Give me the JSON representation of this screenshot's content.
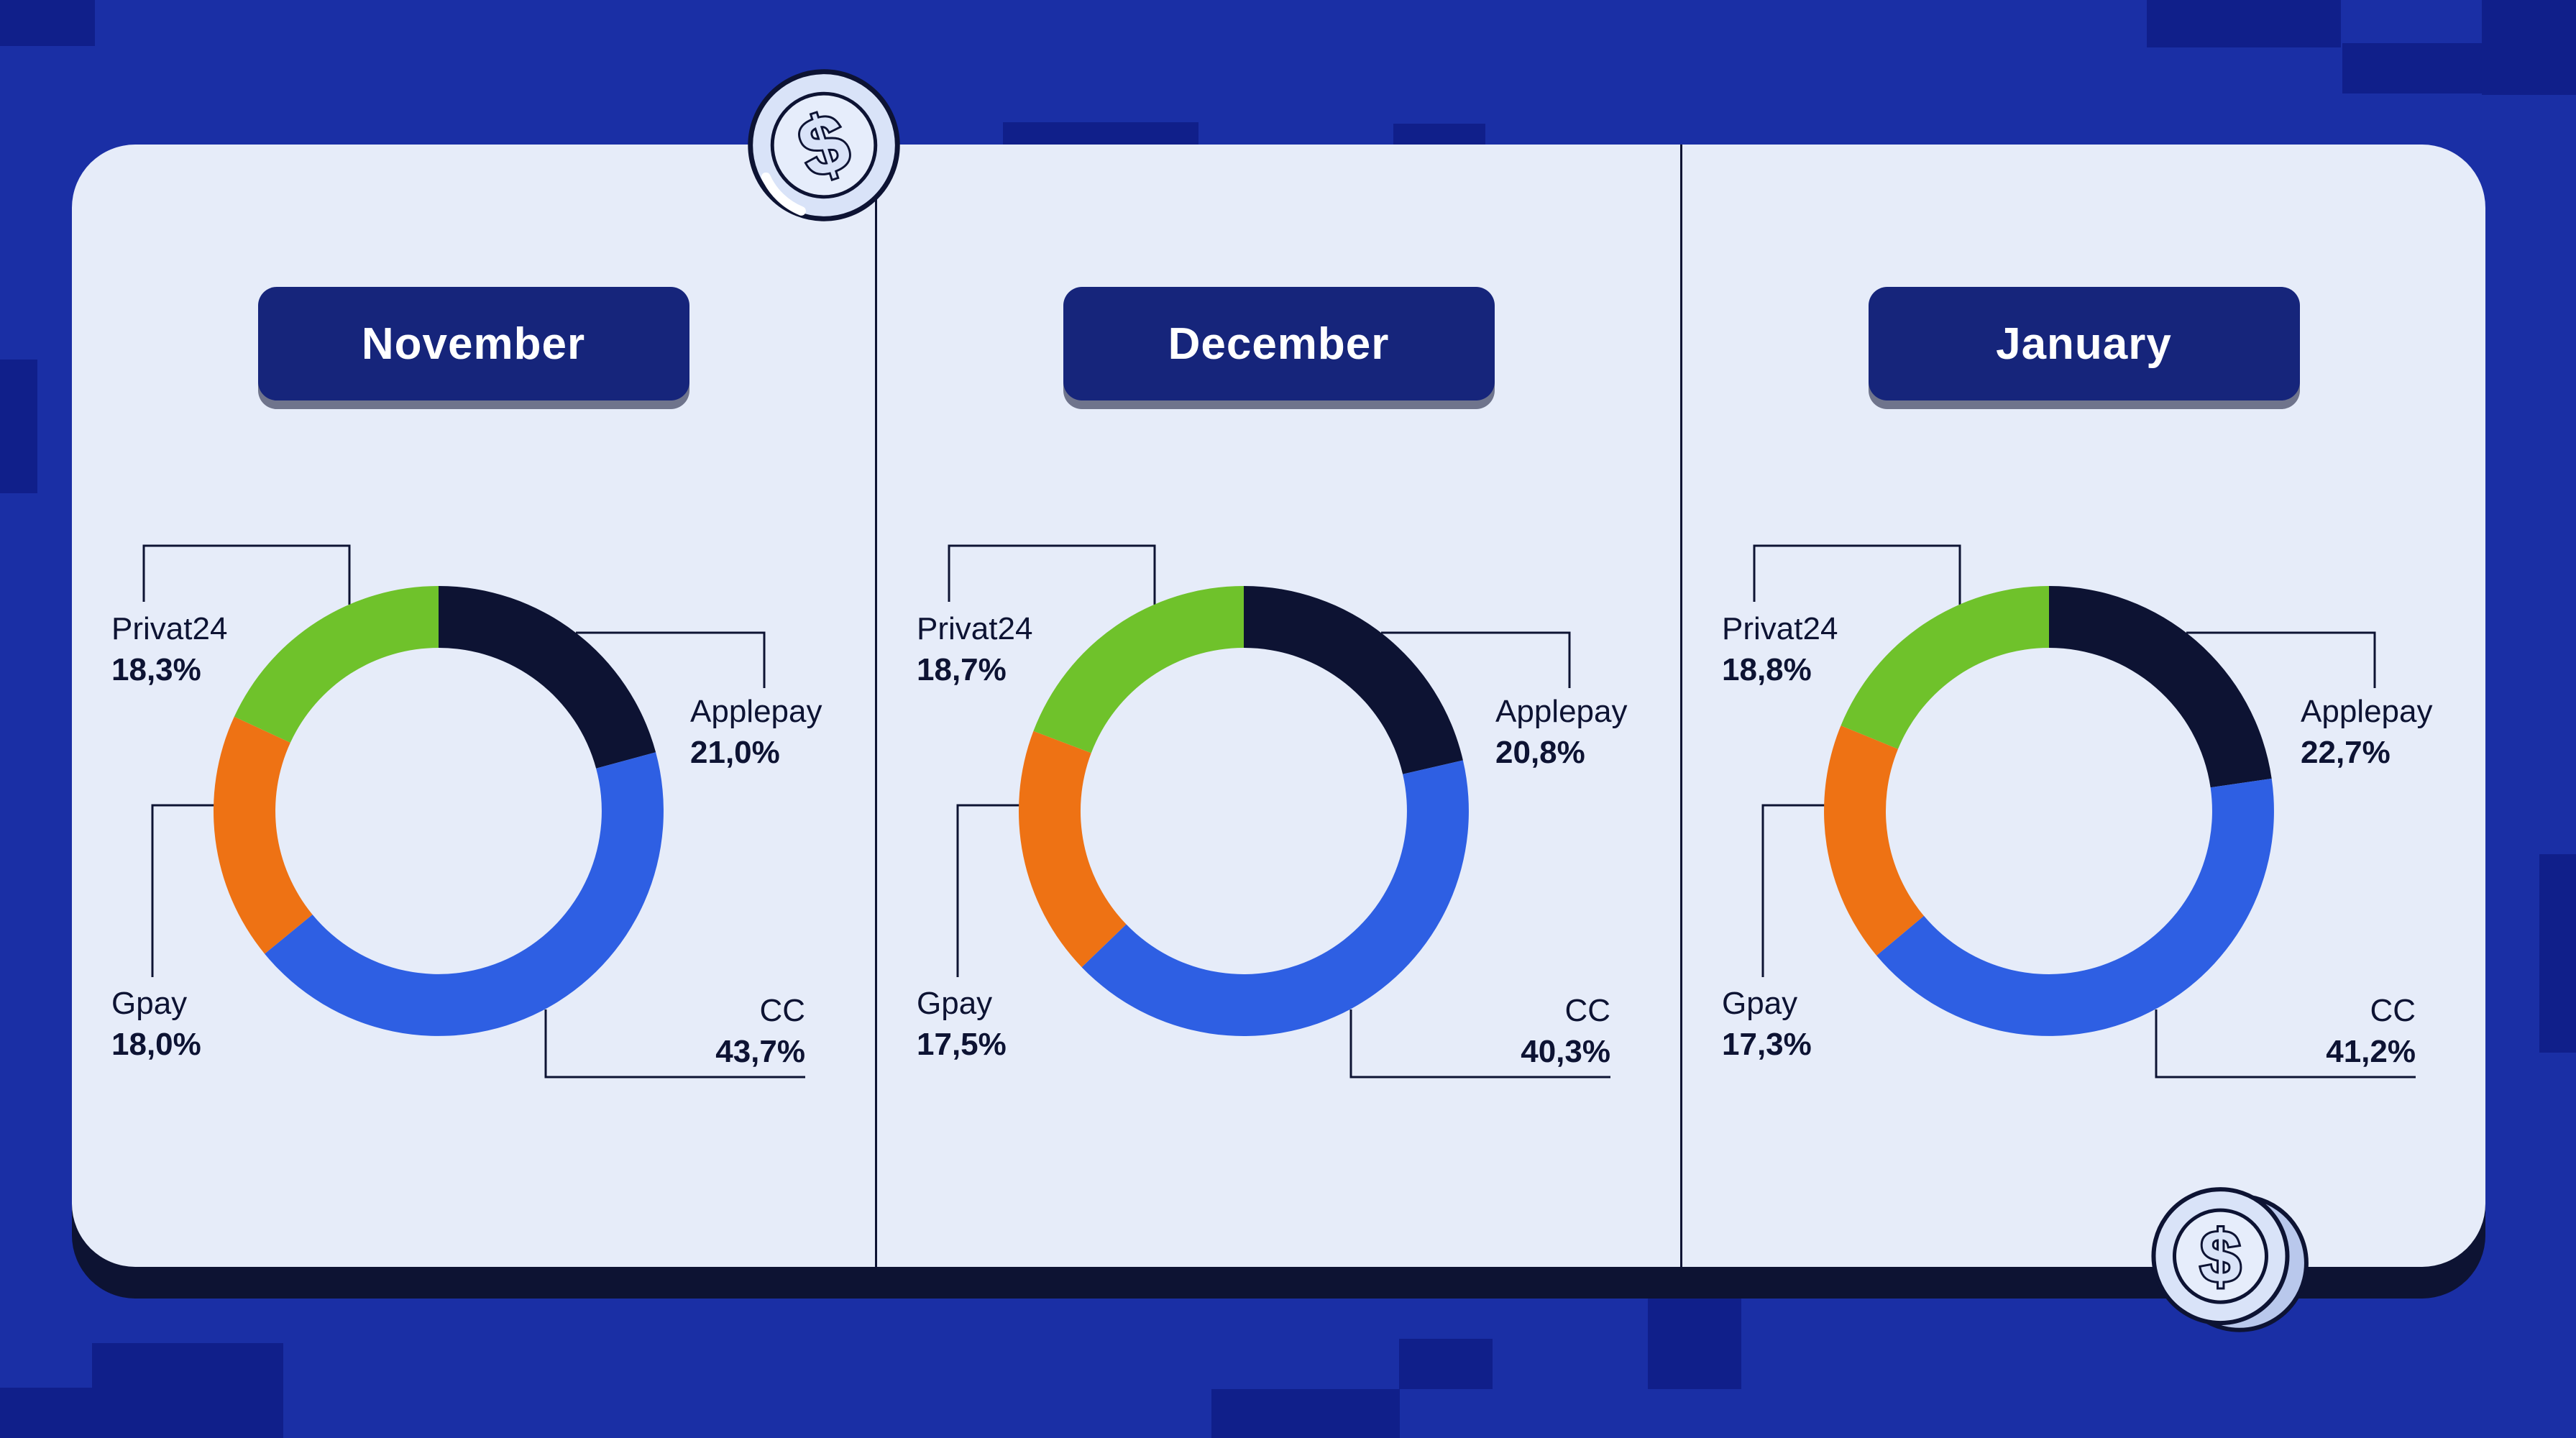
{
  "icons": {
    "coin_symbol": "$"
  },
  "colors": {
    "background": "#1a2fa5",
    "background_square": "#101f8a",
    "card": "#e6ecf9",
    "ink": "#0d1333",
    "month_button": "#16257b",
    "month_button_text": "#ffffff",
    "coin_fill": "#d9e3f8",
    "segment_applepay": "#0d1333",
    "segment_cc": "#2e5fe3",
    "segment_gpay": "#ee7214",
    "segment_privat24": "#6fc22b"
  },
  "chart_data": [
    {
      "type": "pie",
      "subtype": "donut",
      "title": "November",
      "categories": [
        "Applepay",
        "CC",
        "Gpay",
        "Privat24"
      ],
      "values": [
        21.0,
        43.7,
        18.0,
        18.3
      ],
      "value_labels": [
        "21,0%",
        "43,7%",
        "18,0%",
        "18,3%"
      ],
      "colors": [
        "#0d1333",
        "#2e5fe3",
        "#ee7214",
        "#6fc22b"
      ],
      "start_angle_deg": 0,
      "direction": "clockwise",
      "legend": "callout-labels"
    },
    {
      "type": "pie",
      "subtype": "donut",
      "title": "December",
      "categories": [
        "Applepay",
        "CC",
        "Gpay",
        "Privat24"
      ],
      "values": [
        20.8,
        40.3,
        17.5,
        18.7
      ],
      "value_labels": [
        "20,8%",
        "40,3%",
        "17,5%",
        "18,7%"
      ],
      "colors": [
        "#0d1333",
        "#2e5fe3",
        "#ee7214",
        "#6fc22b"
      ],
      "start_angle_deg": 0,
      "direction": "clockwise",
      "legend": "callout-labels"
    },
    {
      "type": "pie",
      "subtype": "donut",
      "title": "January",
      "categories": [
        "Applepay",
        "CC",
        "Gpay",
        "Privat24"
      ],
      "values": [
        22.7,
        41.2,
        17.3,
        18.8
      ],
      "value_labels": [
        "22,7%",
        "41,2%",
        "17,3%",
        "18,8%"
      ],
      "colors": [
        "#0d1333",
        "#2e5fe3",
        "#ee7214",
        "#6fc22b"
      ],
      "start_angle_deg": 0,
      "direction": "clockwise",
      "legend": "callout-labels"
    }
  ]
}
